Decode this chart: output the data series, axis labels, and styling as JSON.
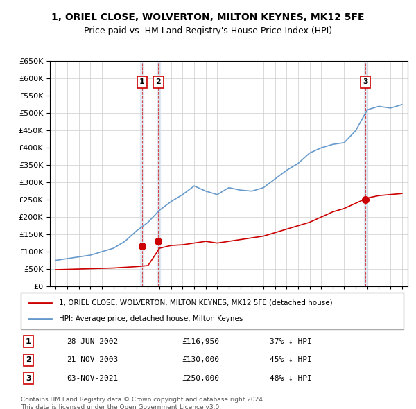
{
  "title": "1, ORIEL CLOSE, WOLVERTON, MILTON KEYNES, MK12 5FE",
  "subtitle": "Price paid vs. HM Land Registry's House Price Index (HPI)",
  "legend_line1": "1, ORIEL CLOSE, WOLVERTON, MILTON KEYNES, MK12 5FE (detached house)",
  "legend_line2": "HPI: Average price, detached house, Milton Keynes",
  "footer": "Contains HM Land Registry data © Crown copyright and database right 2024.\nThis data is licensed under the Open Government Licence v3.0.",
  "sale_color": "#cc0000",
  "hpi_color": "#6699cc",
  "ylim": [
    0,
    650000
  ],
  "yticks": [
    0,
    50000,
    100000,
    150000,
    200000,
    250000,
    300000,
    350000,
    400000,
    450000,
    500000,
    550000,
    600000,
    650000
  ],
  "sales": [
    {
      "label": "1",
      "date": "28-JUN-2002",
      "price": 116950,
      "pct": "37%",
      "year": 2002.49
    },
    {
      "label": "2",
      "date": "21-NOV-2003",
      "price": 130000,
      "pct": "45%",
      "year": 2003.89
    },
    {
      "label": "3",
      "date": "03-NOV-2021",
      "price": 250000,
      "pct": "48%",
      "year": 2021.84
    }
  ],
  "hpi_years": [
    1995,
    1996,
    1997,
    1998,
    1999,
    2000,
    2001,
    2002,
    2003,
    2004,
    2005,
    2006,
    2007,
    2008,
    2009,
    2010,
    2011,
    2012,
    2013,
    2014,
    2015,
    2016,
    2017,
    2018,
    2019,
    2020,
    2021,
    2022,
    2023,
    2024,
    2025
  ],
  "hpi_values": [
    75000,
    80000,
    85000,
    90000,
    100000,
    110000,
    130000,
    160000,
    185000,
    220000,
    245000,
    265000,
    290000,
    275000,
    265000,
    285000,
    278000,
    275000,
    285000,
    310000,
    335000,
    355000,
    385000,
    400000,
    410000,
    415000,
    450000,
    510000,
    520000,
    515000,
    525000
  ],
  "price_years": [
    1995,
    1996,
    1997,
    1998,
    1999,
    2000,
    2001,
    2002,
    2003,
    2004,
    2005,
    2006,
    2007,
    2008,
    2009,
    2010,
    2011,
    2012,
    2013,
    2014,
    2015,
    2016,
    2017,
    2018,
    2019,
    2020,
    2021,
    2022,
    2023,
    2024,
    2025
  ],
  "price_values": [
    48000,
    49000,
    50000,
    51000,
    52000,
    53000,
    55000,
    57000,
    60000,
    110000,
    118000,
    120000,
    125000,
    130000,
    125000,
    130000,
    135000,
    140000,
    145000,
    155000,
    165000,
    175000,
    185000,
    200000,
    215000,
    225000,
    240000,
    255000,
    262000,
    265000,
    268000
  ]
}
